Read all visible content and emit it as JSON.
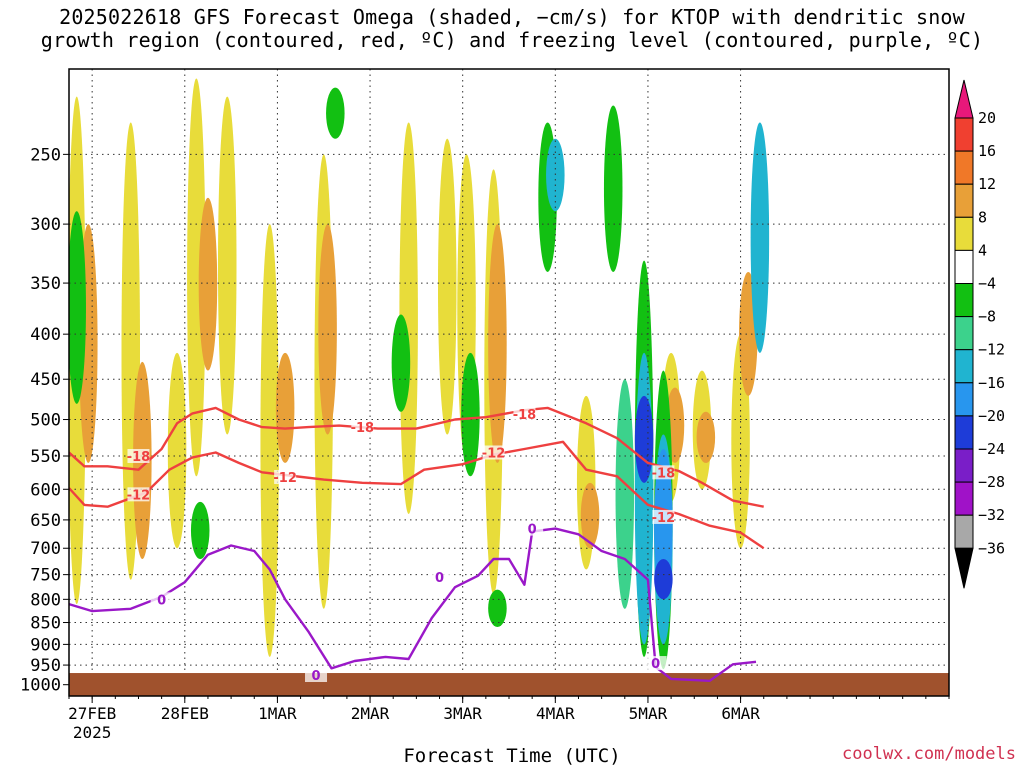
{
  "title_line1": "2025022618 GFS Forecast Omega (shaded, −cm/s) for KTOP with dendritic snow",
  "title_line2": "growth region (contoured, red, ºC) and freezing level (contoured, purple, ºC)",
  "credit": "coolwx.com/models",
  "chart_data": {
    "type": "heatmap",
    "title": "2025022618 GFS Forecast Omega (shaded, −cm/s) for KTOP with dendritic snow growth region (contoured, red, ºC) and freezing level (contoured, purple, ºC)",
    "xlabel": "Forecast Time (UTC)",
    "ylabel": "",
    "x_unit": "hours since 2025-02-26 18 UTC",
    "xlim": [
      0,
      228
    ],
    "x_ticks": [
      {
        "hour": 6,
        "label": "27FEB",
        "sub": "2025"
      },
      {
        "hour": 30,
        "label": "28FEB",
        "sub": ""
      },
      {
        "hour": 54,
        "label": "1MAR",
        "sub": ""
      },
      {
        "hour": 78,
        "label": "2MAR",
        "sub": ""
      },
      {
        "hour": 102,
        "label": "3MAR",
        "sub": ""
      },
      {
        "hour": 126,
        "label": "4MAR",
        "sub": ""
      },
      {
        "hour": 150,
        "label": "5MAR",
        "sub": ""
      },
      {
        "hour": 174,
        "label": "6MAR",
        "sub": ""
      }
    ],
    "y_axis": "pressure (hPa), log scale, reversed",
    "ylim": [
      1030,
      200
    ],
    "y_ticks": [
      250,
      300,
      350,
      400,
      450,
      500,
      550,
      600,
      650,
      700,
      750,
      800,
      850,
      900,
      950,
      1000
    ],
    "grid": true,
    "terrain_top_hpa": 970,
    "colorbar": {
      "labels": [
        "20",
        "16",
        "12",
        "8",
        "4",
        "−4",
        "−8",
        "−12",
        "−16",
        "−20",
        "−24",
        "−28",
        "−32",
        "−36"
      ],
      "bins": [
        {
          "range": ">20",
          "color": "#e8187a"
        },
        {
          "range": "16 to 20",
          "color": "#f04030"
        },
        {
          "range": "12 to 16",
          "color": "#f07828"
        },
        {
          "range": "8 to 12",
          "color": "#e8a038"
        },
        {
          "range": "4 to 8",
          "color": "#e8dc3a"
        },
        {
          "range": "-4 to 4",
          "color": "#ffffff"
        },
        {
          "range": "-8 to -4",
          "color": "#12c012"
        },
        {
          "range": "-12 to -8",
          "color": "#3cd28c"
        },
        {
          "range": "-16 to -12",
          "color": "#20b4d0"
        },
        {
          "range": "-20 to -16",
          "color": "#2896ee"
        },
        {
          "range": "-24 to -20",
          "color": "#1e3cd8"
        },
        {
          "range": "-28 to -24",
          "color": "#7a1ec8"
        },
        {
          "range": "-32 to -28",
          "color": "#a012c8"
        },
        {
          "range": "-36 to -32",
          "color": "#a8a8a8"
        },
        {
          "range": "<-36",
          "color": "#000000"
        }
      ]
    },
    "omega_regions": [
      {
        "hour": 2,
        "p_top": 215,
        "p_bot": 810,
        "value": 6
      },
      {
        "hour": 5,
        "p_top": 300,
        "p_bot": 560,
        "value": 9
      },
      {
        "hour": 16,
        "p_top": 230,
        "p_bot": 760,
        "value": 6
      },
      {
        "hour": 19,
        "p_top": 430,
        "p_bot": 720,
        "value": 10
      },
      {
        "hour": 28,
        "p_top": 420,
        "p_bot": 700,
        "value": 5
      },
      {
        "hour": 33,
        "p_top": 205,
        "p_bot": 580,
        "value": 6
      },
      {
        "hour": 36,
        "p_top": 280,
        "p_bot": 440,
        "value": 10
      },
      {
        "hour": 41,
        "p_top": 215,
        "p_bot": 520,
        "value": 5
      },
      {
        "hour": 52,
        "p_top": 300,
        "p_bot": 930,
        "value": 5
      },
      {
        "hour": 56,
        "p_top": 420,
        "p_bot": 560,
        "value": 9
      },
      {
        "hour": 66,
        "p_top": 250,
        "p_bot": 820,
        "value": 6
      },
      {
        "hour": 67,
        "p_top": 300,
        "p_bot": 520,
        "value": 10
      },
      {
        "hour": 88,
        "p_top": 230,
        "p_bot": 640,
        "value": 5
      },
      {
        "hour": 98,
        "p_top": 240,
        "p_bot": 520,
        "value": 6
      },
      {
        "hour": 103,
        "p_top": 250,
        "p_bot": 560,
        "value": 5
      },
      {
        "hour": 110,
        "p_top": 260,
        "p_bot": 790,
        "value": 6
      },
      {
        "hour": 111,
        "p_top": 300,
        "p_bot": 560,
        "value": 10
      },
      {
        "hour": 134,
        "p_top": 470,
        "p_bot": 740,
        "value": 6
      },
      {
        "hour": 135,
        "p_top": 590,
        "p_bot": 700,
        "value": 10
      },
      {
        "hour": 156,
        "p_top": 420,
        "p_bot": 620,
        "value": 6
      },
      {
        "hour": 157,
        "p_top": 460,
        "p_bot": 560,
        "value": 11
      },
      {
        "hour": 164,
        "p_top": 440,
        "p_bot": 600,
        "value": 6
      },
      {
        "hour": 165,
        "p_top": 490,
        "p_bot": 560,
        "value": 10
      },
      {
        "hour": 174,
        "p_top": 400,
        "p_bot": 700,
        "value": 5
      },
      {
        "hour": 176,
        "p_top": 340,
        "p_bot": 470,
        "value": 9
      },
      {
        "hour": 2,
        "p_top": 290,
        "p_bot": 480,
        "value": -6
      },
      {
        "hour": 34,
        "p_top": 620,
        "p_bot": 720,
        "value": -6
      },
      {
        "hour": 69,
        "p_top": 210,
        "p_bot": 240,
        "value": -6
      },
      {
        "hour": 86,
        "p_top": 380,
        "p_bot": 490,
        "value": -6
      },
      {
        "hour": 104,
        "p_top": 420,
        "p_bot": 580,
        "value": -6
      },
      {
        "hour": 111,
        "p_top": 780,
        "p_bot": 860,
        "value": -6
      },
      {
        "hour": 124,
        "p_top": 230,
        "p_bot": 340,
        "value": -7
      },
      {
        "hour": 126,
        "p_top": 240,
        "p_bot": 290,
        "value": -13
      },
      {
        "hour": 141,
        "p_top": 220,
        "p_bot": 340,
        "value": -6
      },
      {
        "hour": 144,
        "p_top": 450,
        "p_bot": 820,
        "value": -9
      },
      {
        "hour": 149,
        "p_top": 330,
        "p_bot": 930,
        "value": -7
      },
      {
        "hour": 149,
        "p_top": 420,
        "p_bot": 900,
        "value": -13
      },
      {
        "hour": 149,
        "p_top": 470,
        "p_bot": 590,
        "value": -22
      },
      {
        "hour": 154,
        "p_top": 440,
        "p_bot": 960,
        "value": -7
      },
      {
        "hour": 154,
        "p_top": 520,
        "p_bot": 900,
        "value": -14
      },
      {
        "hour": 154,
        "p_top": 540,
        "p_bot": 800,
        "value": -18
      },
      {
        "hour": 154,
        "p_top": 720,
        "p_bot": 800,
        "value": -23
      },
      {
        "hour": 179,
        "p_top": 230,
        "p_bot": 420,
        "value": -12
      }
    ],
    "series": [
      {
        "name": "-18",
        "color": "#ee4040",
        "label_at": [
          [
            18,
            550
          ],
          [
            76,
            510
          ],
          [
            118,
            493
          ],
          [
            154,
            574
          ]
        ],
        "points": [
          [
            0,
            545
          ],
          [
            4,
            565
          ],
          [
            10,
            565
          ],
          [
            18,
            570
          ],
          [
            24,
            540
          ],
          [
            28,
            505
          ],
          [
            32,
            492
          ],
          [
            38,
            485
          ],
          [
            44,
            500
          ],
          [
            50,
            510
          ],
          [
            56,
            512
          ],
          [
            62,
            510
          ],
          [
            70,
            508
          ],
          [
            80,
            512
          ],
          [
            90,
            512
          ],
          [
            100,
            500
          ],
          [
            108,
            497
          ],
          [
            118,
            488
          ],
          [
            124,
            485
          ],
          [
            134,
            505
          ],
          [
            142,
            525
          ],
          [
            150,
            560
          ],
          [
            158,
            572
          ],
          [
            164,
            590
          ],
          [
            172,
            618
          ],
          [
            180,
            628
          ]
        ]
      },
      {
        "name": "-12",
        "color": "#ee4040",
        "label_at": [
          [
            18,
            608
          ],
          [
            56,
            581
          ],
          [
            110,
            545
          ],
          [
            154,
            645
          ]
        ],
        "points": [
          [
            0,
            598
          ],
          [
            4,
            625
          ],
          [
            10,
            628
          ],
          [
            20,
            605
          ],
          [
            26,
            570
          ],
          [
            32,
            552
          ],
          [
            38,
            545
          ],
          [
            44,
            560
          ],
          [
            50,
            574
          ],
          [
            56,
            578
          ],
          [
            66,
            585
          ],
          [
            76,
            590
          ],
          [
            86,
            592
          ],
          [
            92,
            570
          ],
          [
            102,
            562
          ],
          [
            110,
            548
          ],
          [
            118,
            540
          ],
          [
            128,
            530
          ],
          [
            134,
            570
          ],
          [
            142,
            580
          ],
          [
            150,
            625
          ],
          [
            158,
            640
          ],
          [
            166,
            660
          ],
          [
            174,
            672
          ],
          [
            180,
            700
          ]
        ]
      },
      {
        "name": "0",
        "color": "#9a18c8",
        "label_at": [
          [
            24,
            800
          ],
          [
            64,
            975
          ],
          [
            96,
            755
          ],
          [
            120,
            665
          ],
          [
            152,
            945
          ]
        ],
        "points": [
          [
            0,
            810
          ],
          [
            6,
            825
          ],
          [
            16,
            820
          ],
          [
            24,
            795
          ],
          [
            30,
            765
          ],
          [
            36,
            712
          ],
          [
            42,
            695
          ],
          [
            48,
            705
          ],
          [
            52,
            740
          ],
          [
            56,
            800
          ],
          [
            62,
            870
          ],
          [
            68,
            958
          ],
          [
            74,
            940
          ],
          [
            82,
            930
          ],
          [
            88,
            935
          ],
          [
            94,
            840
          ],
          [
            100,
            775
          ],
          [
            106,
            752
          ],
          [
            110,
            720
          ],
          [
            114,
            720
          ],
          [
            118,
            770
          ],
          [
            120,
            670
          ],
          [
            126,
            665
          ],
          [
            132,
            675
          ],
          [
            138,
            705
          ],
          [
            144,
            720
          ],
          [
            150,
            760
          ],
          [
            152,
            955
          ],
          [
            156,
            985
          ],
          [
            166,
            990
          ],
          [
            172,
            948
          ],
          [
            178,
            942
          ]
        ]
      }
    ]
  }
}
